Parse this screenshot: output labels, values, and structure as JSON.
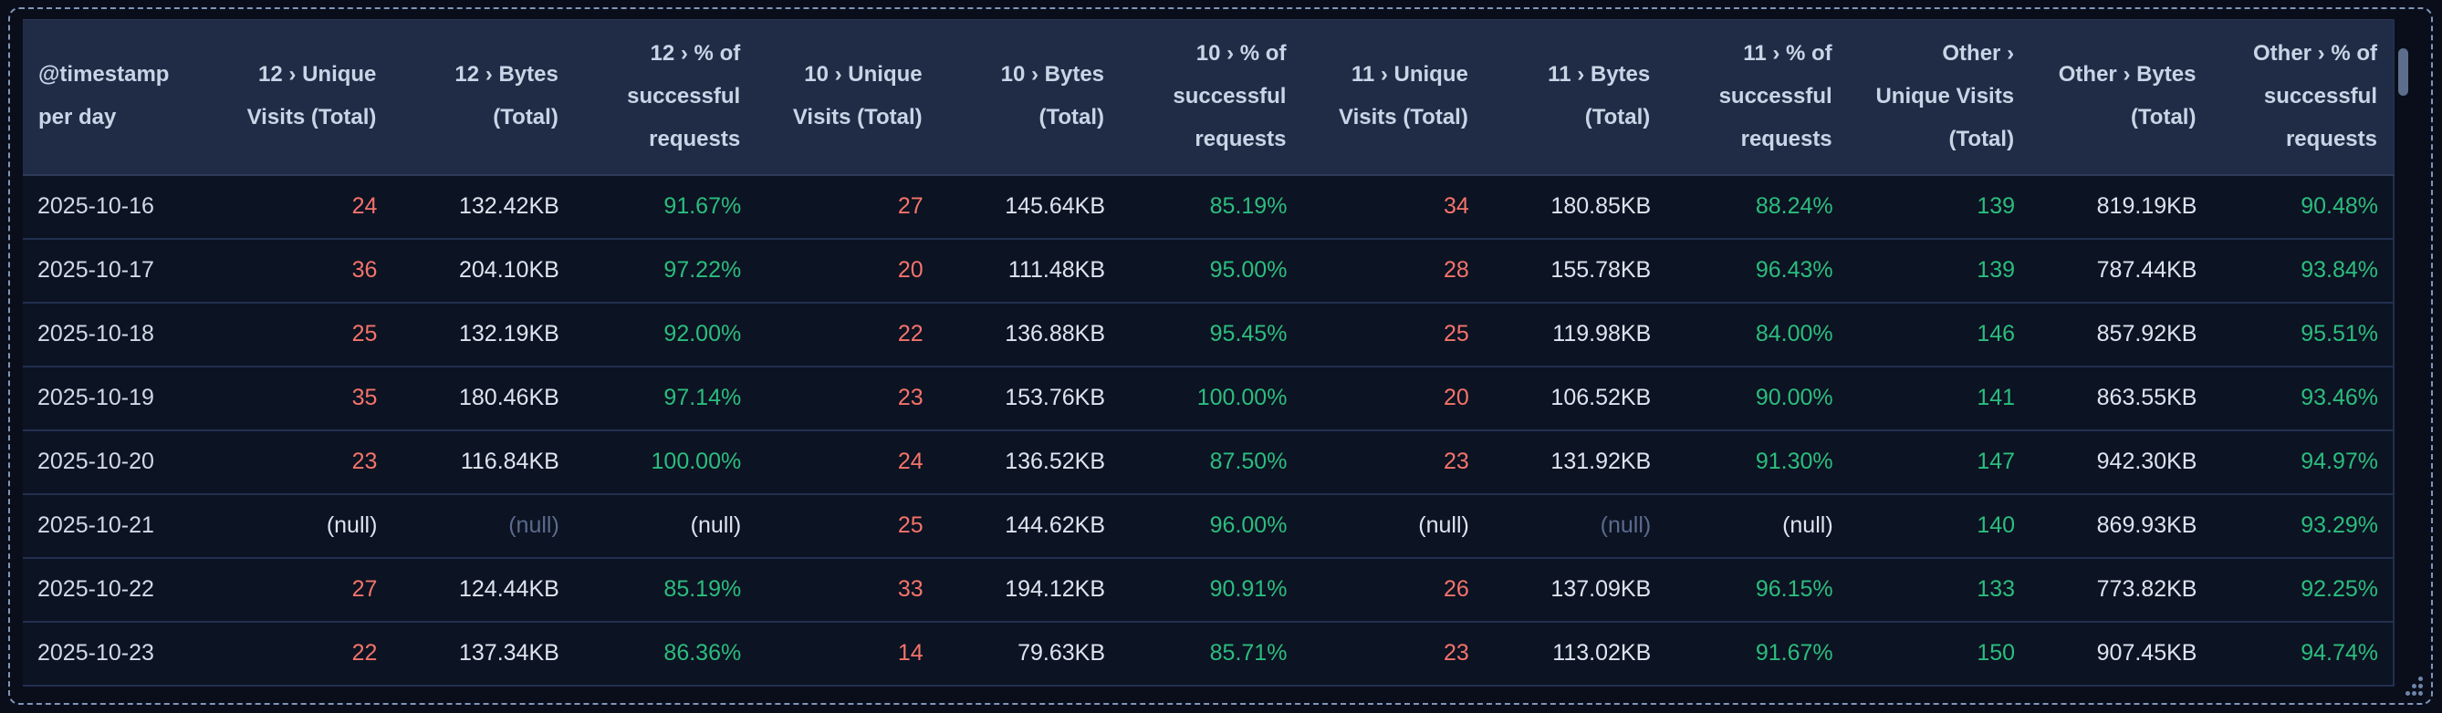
{
  "colors": {
    "bg": "#0a0e1a",
    "dash": "#7e96ba",
    "header-bg": "#202c46",
    "header-text": "#c9d5e6",
    "row-bg": "#0c1322",
    "line": "#223050",
    "line2": "#2c3a58",
    "text-date": "#d3dae6",
    "text-white": "#dee4ef",
    "red": "#f4736b",
    "green": "#2bbd7e",
    "dim": "#5a6b8e",
    "thumb": "#5d6e8c",
    "grip": "#6e85aa"
  },
  "table": {
    "columns": [
      {
        "id": "timestamp",
        "label": "@timestamp per day",
        "align": "left"
      },
      {
        "id": "12-unique-visits",
        "label": "12 › Unique Visits (Total)"
      },
      {
        "id": "12-bytes",
        "label": "12 › Bytes (Total)"
      },
      {
        "id": "12-pct-success",
        "label": "12 › % of successful requests"
      },
      {
        "id": "10-unique-visits",
        "label": "10 › Unique Visits (Total)"
      },
      {
        "id": "10-bytes",
        "label": "10 › Bytes (Total)"
      },
      {
        "id": "10-pct-success",
        "label": "10 › % of successful requests"
      },
      {
        "id": "11-unique-visits",
        "label": "11 › Unique Visits (Total)"
      },
      {
        "id": "11-bytes",
        "label": "11 › Bytes (Total)"
      },
      {
        "id": "11-pct-success",
        "label": "11 › % of successful requests"
      },
      {
        "id": "other-unique-visits",
        "label": "Other › Unique Visits (Total)"
      },
      {
        "id": "other-bytes",
        "label": "Other › Bytes (Total)"
      },
      {
        "id": "other-pct-success",
        "label": "Other › % of successful requests"
      }
    ],
    "rows": [
      {
        "cells": [
          {
            "t": "2025-10-16",
            "c": "date"
          },
          {
            "t": "24",
            "c": "red"
          },
          {
            "t": "132.42KB",
            "c": "white"
          },
          {
            "t": "91.67%",
            "c": "green"
          },
          {
            "t": "27",
            "c": "red"
          },
          {
            "t": "145.64KB",
            "c": "white"
          },
          {
            "t": "85.19%",
            "c": "green"
          },
          {
            "t": "34",
            "c": "red"
          },
          {
            "t": "180.85KB",
            "c": "white"
          },
          {
            "t": "88.24%",
            "c": "green"
          },
          {
            "t": "139",
            "c": "green"
          },
          {
            "t": "819.19KB",
            "c": "white"
          },
          {
            "t": "90.48%",
            "c": "green"
          }
        ]
      },
      {
        "cells": [
          {
            "t": "2025-10-17",
            "c": "date"
          },
          {
            "t": "36",
            "c": "red"
          },
          {
            "t": "204.10KB",
            "c": "white"
          },
          {
            "t": "97.22%",
            "c": "green"
          },
          {
            "t": "20",
            "c": "red"
          },
          {
            "t": "111.48KB",
            "c": "white"
          },
          {
            "t": "95.00%",
            "c": "green"
          },
          {
            "t": "28",
            "c": "red"
          },
          {
            "t": "155.78KB",
            "c": "white"
          },
          {
            "t": "96.43%",
            "c": "green"
          },
          {
            "t": "139",
            "c": "green"
          },
          {
            "t": "787.44KB",
            "c": "white"
          },
          {
            "t": "93.84%",
            "c": "green"
          }
        ]
      },
      {
        "cells": [
          {
            "t": "2025-10-18",
            "c": "date"
          },
          {
            "t": "25",
            "c": "red"
          },
          {
            "t": "132.19KB",
            "c": "white"
          },
          {
            "t": "92.00%",
            "c": "green"
          },
          {
            "t": "22",
            "c": "red"
          },
          {
            "t": "136.88KB",
            "c": "white"
          },
          {
            "t": "95.45%",
            "c": "green"
          },
          {
            "t": "25",
            "c": "red"
          },
          {
            "t": "119.98KB",
            "c": "white"
          },
          {
            "t": "84.00%",
            "c": "green"
          },
          {
            "t": "146",
            "c": "green"
          },
          {
            "t": "857.92KB",
            "c": "white"
          },
          {
            "t": "95.51%",
            "c": "green"
          }
        ]
      },
      {
        "cells": [
          {
            "t": "2025-10-19",
            "c": "date"
          },
          {
            "t": "35",
            "c": "red"
          },
          {
            "t": "180.46KB",
            "c": "white"
          },
          {
            "t": "97.14%",
            "c": "green"
          },
          {
            "t": "23",
            "c": "red"
          },
          {
            "t": "153.76KB",
            "c": "white"
          },
          {
            "t": "100.00%",
            "c": "green"
          },
          {
            "t": "20",
            "c": "red"
          },
          {
            "t": "106.52KB",
            "c": "white"
          },
          {
            "t": "90.00%",
            "c": "green"
          },
          {
            "t": "141",
            "c": "green"
          },
          {
            "t": "863.55KB",
            "c": "white"
          },
          {
            "t": "93.46%",
            "c": "green"
          }
        ]
      },
      {
        "cells": [
          {
            "t": "2025-10-20",
            "c": "date"
          },
          {
            "t": "23",
            "c": "red"
          },
          {
            "t": "116.84KB",
            "c": "white"
          },
          {
            "t": "100.00%",
            "c": "green"
          },
          {
            "t": "24",
            "c": "red"
          },
          {
            "t": "136.52KB",
            "c": "white"
          },
          {
            "t": "87.50%",
            "c": "green"
          },
          {
            "t": "23",
            "c": "red"
          },
          {
            "t": "131.92KB",
            "c": "white"
          },
          {
            "t": "91.30%",
            "c": "green"
          },
          {
            "t": "147",
            "c": "green"
          },
          {
            "t": "942.30KB",
            "c": "white"
          },
          {
            "t": "94.97%",
            "c": "green"
          }
        ]
      },
      {
        "cells": [
          {
            "t": "2025-10-21",
            "c": "date"
          },
          {
            "t": "(null)",
            "c": "white"
          },
          {
            "t": "(null)",
            "c": "dim"
          },
          {
            "t": "(null)",
            "c": "white"
          },
          {
            "t": "25",
            "c": "red"
          },
          {
            "t": "144.62KB",
            "c": "white"
          },
          {
            "t": "96.00%",
            "c": "green"
          },
          {
            "t": "(null)",
            "c": "white"
          },
          {
            "t": "(null)",
            "c": "dim"
          },
          {
            "t": "(null)",
            "c": "white"
          },
          {
            "t": "140",
            "c": "green"
          },
          {
            "t": "869.93KB",
            "c": "white"
          },
          {
            "t": "93.29%",
            "c": "green"
          }
        ]
      },
      {
        "cells": [
          {
            "t": "2025-10-22",
            "c": "date"
          },
          {
            "t": "27",
            "c": "red"
          },
          {
            "t": "124.44KB",
            "c": "white"
          },
          {
            "t": "85.19%",
            "c": "green"
          },
          {
            "t": "33",
            "c": "red"
          },
          {
            "t": "194.12KB",
            "c": "white"
          },
          {
            "t": "90.91%",
            "c": "green"
          },
          {
            "t": "26",
            "c": "red"
          },
          {
            "t": "137.09KB",
            "c": "white"
          },
          {
            "t": "96.15%",
            "c": "green"
          },
          {
            "t": "133",
            "c": "green"
          },
          {
            "t": "773.82KB",
            "c": "white"
          },
          {
            "t": "92.25%",
            "c": "green"
          }
        ]
      },
      {
        "cells": [
          {
            "t": "2025-10-23",
            "c": "date"
          },
          {
            "t": "22",
            "c": "red"
          },
          {
            "t": "137.34KB",
            "c": "white"
          },
          {
            "t": "86.36%",
            "c": "green"
          },
          {
            "t": "14",
            "c": "red"
          },
          {
            "t": "79.63KB",
            "c": "white"
          },
          {
            "t": "85.71%",
            "c": "green"
          },
          {
            "t": "23",
            "c": "red"
          },
          {
            "t": "113.02KB",
            "c": "white"
          },
          {
            "t": "91.67%",
            "c": "green"
          },
          {
            "t": "150",
            "c": "green"
          },
          {
            "t": "907.45KB",
            "c": "white"
          },
          {
            "t": "94.74%",
            "c": "green"
          }
        ]
      }
    ]
  }
}
